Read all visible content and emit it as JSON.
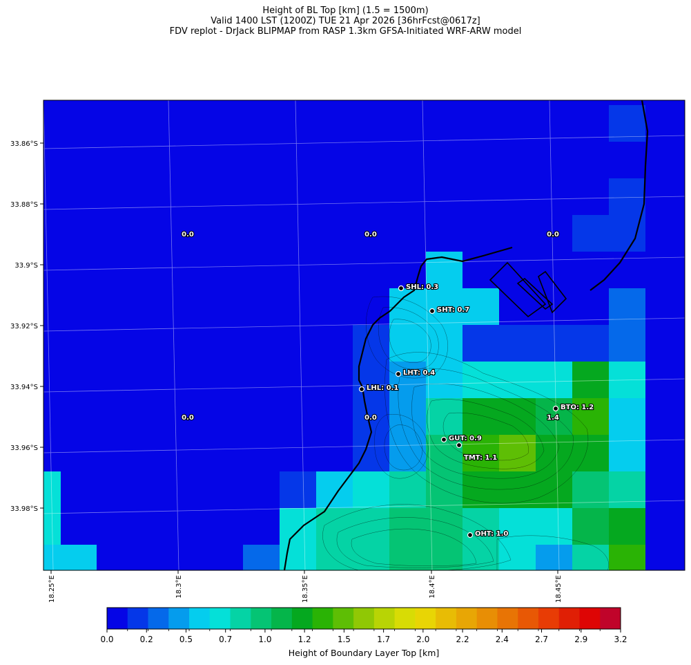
{
  "title": {
    "line1": "Height of BL Top [km] (1.5 = 1500m)",
    "line2": "Valid 1400 LST (1200Z) TUE 21 Apr 2026 [36hrFcst@0617z]",
    "line3": "FDV replot - DrJack BLIPMAP from RASP 1.3km GFSA-Initiated WRF-ARW model"
  },
  "map": {
    "lat_labels": [
      "33.86°S",
      "33.88°S",
      "33.9°S",
      "33.92°S",
      "33.94°S",
      "33.96°S",
      "33.98°S"
    ],
    "lon_labels": [
      "18.25°E",
      "18.3°E",
      "18.35°E",
      "18.4°E",
      "18.45°E"
    ],
    "grid_value_labels": [
      "0.0",
      "0.0",
      "0.0",
      "0.0",
      "0.0"
    ],
    "extra_value_label": "1.4",
    "stations": [
      {
        "code": "SHL",
        "value": "0.3",
        "label": "SHL: 0.3"
      },
      {
        "code": "SHT",
        "value": "0.7",
        "label": "SHT: 0.7"
      },
      {
        "code": "LHT",
        "value": "0.4",
        "label": "LHT: 0.4"
      },
      {
        "code": "LHL",
        "value": "0.1",
        "label": "LHL: 0.1"
      },
      {
        "code": "BTO",
        "value": "1.2",
        "label": "BTO: 1.2"
      },
      {
        "code": "GUT",
        "value": "0.9",
        "label": "GUT: 0.9"
      },
      {
        "code": "TMT",
        "value": "1.1",
        "label": "TMT: 1.1"
      },
      {
        "code": "OHT",
        "value": "1.0",
        "label": "OHT: 1.0"
      }
    ]
  },
  "colorbar": {
    "title": "Height of Boundary Layer Top [km]",
    "tick_labels": [
      "0.0",
      "0.2",
      "0.5",
      "0.7",
      "1.0",
      "1.2",
      "1.5",
      "1.7",
      "2.0",
      "2.2",
      "2.4",
      "2.7",
      "2.9",
      "3.2"
    ],
    "colors": [
      "#0505e6",
      "#0537e8",
      "#0569ea",
      "#059ced",
      "#05cdee",
      "#05e0d8",
      "#05d3a5",
      "#05c474",
      "#05b54a",
      "#05a81f",
      "#2ab305",
      "#5ebe05",
      "#90c805",
      "#b8d405",
      "#d8dc05",
      "#e8d505",
      "#e8bc05",
      "#e8a605",
      "#e88e05",
      "#e87405",
      "#e85805",
      "#e83c05",
      "#e01f05",
      "#de0505",
      "#c0042a"
    ]
  }
}
